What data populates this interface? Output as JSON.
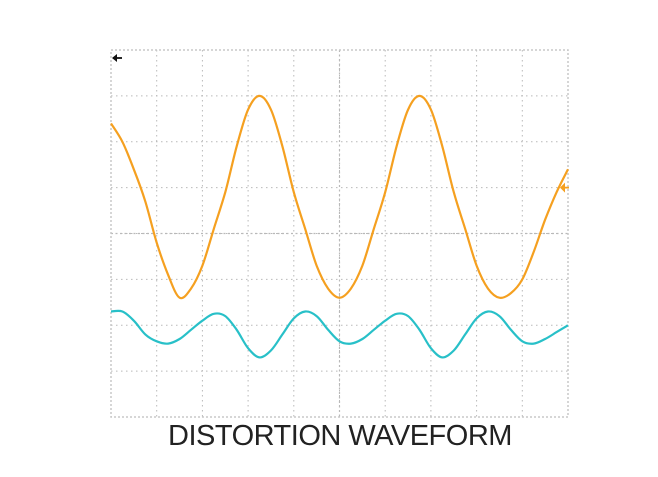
{
  "caption": "DISTORTION WAVEFORM",
  "colors": {
    "background": "#ffffff",
    "grid": "#b9b9b9",
    "frame": "#c8c8c8",
    "trace1": "#f5a020",
    "trace2": "#28c0c8",
    "ground_marker": "#111111"
  },
  "chart_data": {
    "type": "line",
    "title": "DISTORTION WAVEFORM",
    "xlabel": "",
    "ylabel": "",
    "grid": true,
    "divisions": {
      "x": 10,
      "y": 8
    },
    "xlim": [
      0,
      10
    ],
    "ylim": [
      -4,
      4
    ],
    "markers": [
      {
        "name": "ground-marker",
        "side": "left",
        "y": 4
      },
      {
        "name": "trace1-level-marker",
        "side": "right",
        "y": 1
      }
    ],
    "series": [
      {
        "x": [
          0,
          0.25,
          0.5,
          0.75,
          1,
          1.25,
          1.5,
          1.75,
          2,
          2.25,
          2.5,
          2.75,
          3,
          3.25,
          3.5,
          3.75,
          4,
          4.25,
          4.5,
          4.75,
          5,
          5.25,
          5.5,
          5.75,
          6,
          6.25,
          6.5,
          6.75,
          7,
          7.25,
          7.5,
          7.75,
          8,
          8.25,
          8.5,
          8.75,
          9,
          9.25,
          9.5,
          9.75,
          10
        ],
        "y": [
          2.4,
          2.0,
          1.4,
          0.7,
          -0.2,
          -0.9,
          -1.4,
          -1.2,
          -0.7,
          0.1,
          0.9,
          1.9,
          2.7,
          3.0,
          2.7,
          1.9,
          0.9,
          0.1,
          -0.7,
          -1.2,
          -1.4,
          -1.2,
          -0.7,
          0.1,
          0.9,
          1.9,
          2.7,
          3.0,
          2.7,
          1.9,
          0.9,
          0.1,
          -0.7,
          -1.2,
          -1.4,
          -1.3,
          -1.0,
          -0.4,
          0.3,
          0.9,
          1.4
        ],
        "color": "#f5a020"
      },
      {
        "x": [
          0,
          0.25,
          0.5,
          0.75,
          1,
          1.25,
          1.5,
          1.75,
          2,
          2.25,
          2.5,
          2.75,
          3,
          3.25,
          3.5,
          3.75,
          4,
          4.25,
          4.5,
          4.75,
          5,
          5.25,
          5.5,
          5.75,
          6,
          6.25,
          6.5,
          6.75,
          7,
          7.25,
          7.5,
          7.75,
          8,
          8.25,
          8.5,
          8.75,
          9,
          9.25,
          9.5,
          9.75,
          10
        ],
        "y": [
          -1.7,
          -1.7,
          -1.9,
          -2.2,
          -2.35,
          -2.4,
          -2.3,
          -2.1,
          -1.9,
          -1.75,
          -1.8,
          -2.1,
          -2.5,
          -2.7,
          -2.55,
          -2.2,
          -1.85,
          -1.7,
          -1.8,
          -2.1,
          -2.35,
          -2.4,
          -2.3,
          -2.1,
          -1.9,
          -1.75,
          -1.8,
          -2.1,
          -2.5,
          -2.7,
          -2.55,
          -2.2,
          -1.85,
          -1.7,
          -1.8,
          -2.1,
          -2.35,
          -2.4,
          -2.3,
          -2.15,
          -2.0
        ],
        "color": "#28c0c8"
      }
    ]
  }
}
